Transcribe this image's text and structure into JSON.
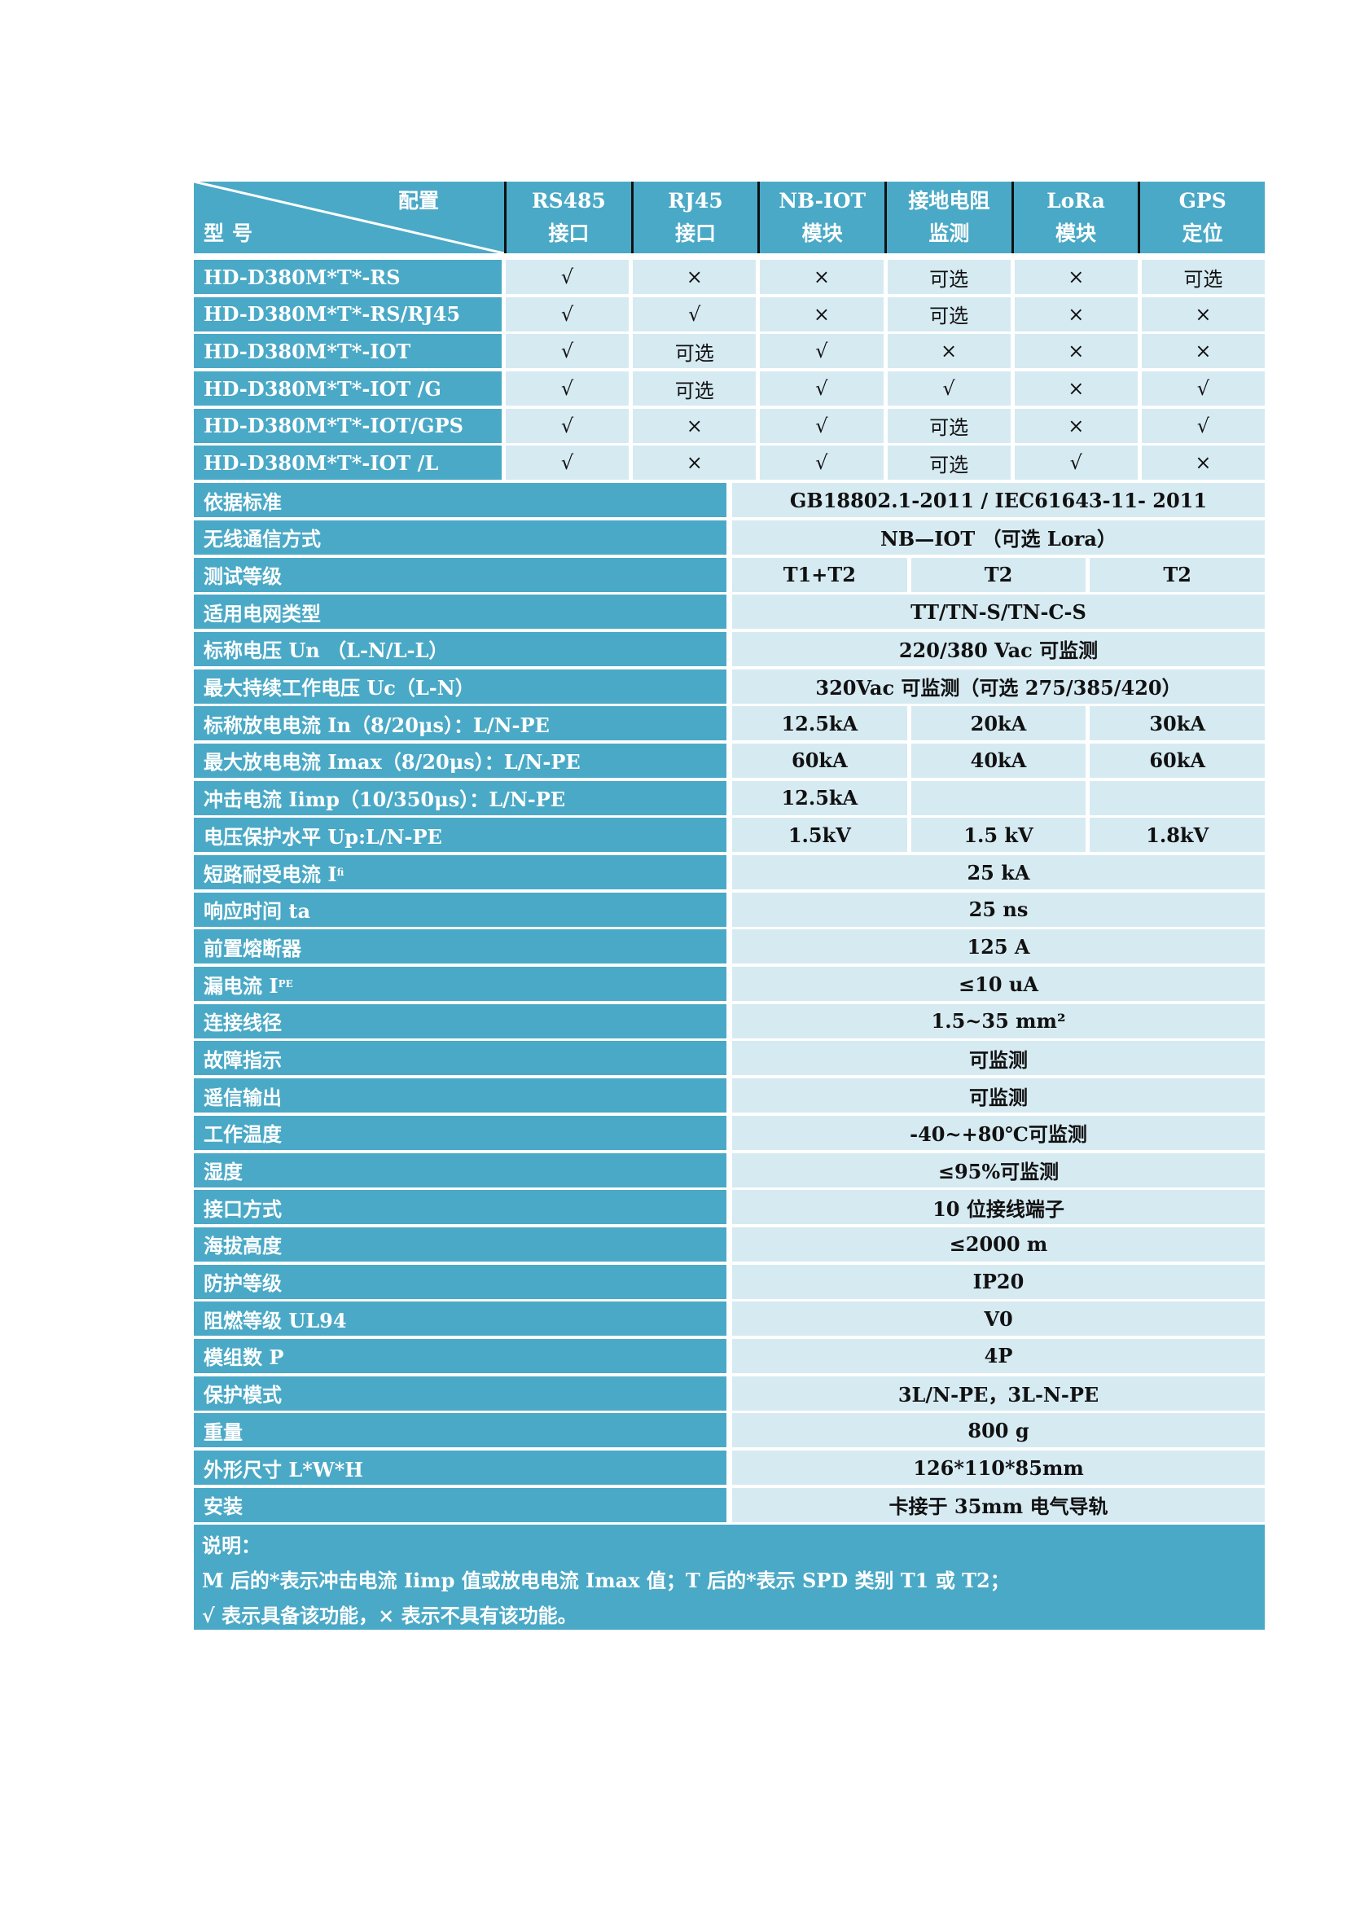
{
  "header": {
    "corner_config": "配置",
    "corner_model": "型号",
    "columns": [
      [
        "RS485",
        "接口"
      ],
      [
        "RJ45",
        "接口"
      ],
      [
        "NB-IOT",
        "模块"
      ],
      [
        "接地电阻",
        "监测"
      ],
      [
        "LoRa",
        "模块"
      ],
      [
        "GPS",
        "定位"
      ]
    ]
  },
  "models": [
    {
      "name": "HD-D380M*T*-RS",
      "values": [
        "√",
        "×",
        "×",
        "可选",
        "×",
        "可选"
      ]
    },
    {
      "name": "HD-D380M*T*-RS/RJ45",
      "values": [
        "√",
        "√",
        "×",
        "可选",
        "×",
        "×"
      ]
    },
    {
      "name": "HD-D380M*T*-IOT",
      "values": [
        "√",
        "可选",
        "√",
        "×",
        "×",
        "×"
      ]
    },
    {
      "name": "HD-D380M*T*-IOT /G",
      "values": [
        "√",
        "可选",
        "√",
        "√",
        "×",
        "√"
      ]
    },
    {
      "name": "HD-D380M*T*-IOT/GPS",
      "values": [
        "√",
        "×",
        "√",
        "可选",
        "×",
        "√"
      ]
    },
    {
      "name": "HD-D380M*T*-IOT /L",
      "values": [
        "√",
        "×",
        "√",
        "可选",
        "√",
        "×"
      ]
    }
  ],
  "specs": [
    {
      "label": "依据标准",
      "values": [
        "GB18802.1-2011 / IEC61643-11- 2011"
      ]
    },
    {
      "label": "无线通信方式",
      "values": [
        "NB—IOT  （可选 Lora）"
      ]
    },
    {
      "label": "测试等级",
      "values": [
        "T1+T2",
        "T2",
        "T2"
      ]
    },
    {
      "label": "适用电网类型",
      "values": [
        "TT/TN-S/TN-C-S"
      ]
    },
    {
      "label": "标称电压 Un （L-N/L-L）",
      "values": [
        "220/380 Vac 可监测"
      ]
    },
    {
      "label": "最大持续工作电压 Uc（L-N）",
      "values": [
        "320Vac 可监测（可选 275/385/420）"
      ]
    },
    {
      "label": "标称放电电流 In（8/20μs）：L/N-PE",
      "values": [
        "12.5kA",
        "20kA",
        "30kA"
      ]
    },
    {
      "label": "最大放电电流 Imax（8/20μs）：L/N-PE",
      "values": [
        "60kA",
        "40kA",
        "60kA"
      ]
    },
    {
      "label": "冲击电流 Iimp（10/350μs）：L/N-PE",
      "values": [
        "12.5kA",
        "",
        ""
      ]
    },
    {
      "label": "电压保护水平 Up:L/N-PE",
      "values": [
        "1.5kV",
        "1.5 kV",
        "1.8kV"
      ]
    },
    {
      "label": "短路耐受电流 I",
      "sub": "fi",
      "values": [
        "25 kA"
      ]
    },
    {
      "label": "响应时间 ta",
      "values": [
        "25 ns"
      ]
    },
    {
      "label": "前置熔断器",
      "values": [
        "125 A"
      ]
    },
    {
      "label": "漏电流 I",
      "sub": "PE",
      "values": [
        "≤10 uA"
      ]
    },
    {
      "label": "连接线径",
      "values": [
        "1.5~35 mm²"
      ]
    },
    {
      "label": "故障指示",
      "values": [
        "可监测"
      ]
    },
    {
      "label": "遥信输出",
      "values": [
        "可监测"
      ]
    },
    {
      "label": "工作温度",
      "values": [
        "-40~+80℃可监测"
      ]
    },
    {
      "label": "湿度",
      "values": [
        "≤95%可监测"
      ]
    },
    {
      "label": "接口方式",
      "values": [
        "10 位接线端子"
      ]
    },
    {
      "label": "海拔高度",
      "values": [
        "≤2000 m"
      ]
    },
    {
      "label": "防护等级",
      "values": [
        "IP20"
      ]
    },
    {
      "label": "阻燃等级 UL94",
      "values": [
        "V0"
      ]
    },
    {
      "label": "模组数 P",
      "values": [
        "4P"
      ]
    },
    {
      "label": "保护模式",
      "values": [
        "3L/N-PE，3L-N-PE"
      ]
    },
    {
      "label": "重量",
      "values": [
        "800 g"
      ]
    },
    {
      "label": "外形尺寸 L*W*H",
      "values": [
        "126*110*85mm"
      ]
    },
    {
      "label": "安装",
      "values": [
        "卡接于 35mm 电气导轨"
      ]
    }
  ],
  "note": {
    "title": "说明：",
    "lines": [
      "M 后的*表示冲击电流 Iimp 值或放电电流 Imax 值；T 后的*表示 SPD 类别 T1 或 T2；",
      "√ 表示具备该功能，× 表示不具有该功能。"
    ]
  },
  "colors": {
    "header_bg": "#4aa9c6",
    "cell_bg": "#d6eaf2"
  }
}
